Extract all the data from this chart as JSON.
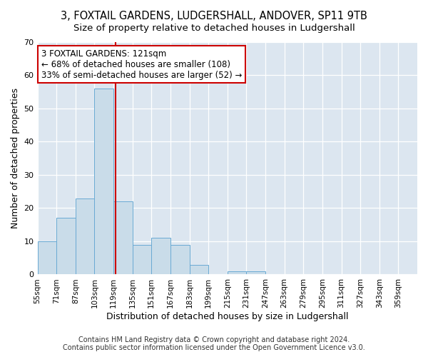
{
  "title": "3, FOXTAIL GARDENS, LUDGERSHALL, ANDOVER, SP11 9TB",
  "subtitle": "Size of property relative to detached houses in Ludgershall",
  "xlabel": "Distribution of detached houses by size in Ludgershall",
  "ylabel": "Number of detached properties",
  "bin_edges": [
    55,
    71,
    87,
    103,
    119,
    135,
    151,
    167,
    183,
    199,
    215,
    231,
    247,
    263,
    279,
    295,
    311,
    327,
    343,
    359,
    375
  ],
  "bar_heights": [
    10,
    17,
    23,
    56,
    22,
    9,
    11,
    9,
    3,
    0,
    1,
    1,
    0,
    0,
    0,
    0,
    0,
    0,
    0,
    0
  ],
  "bar_color": "#c9dce9",
  "bar_edgecolor": "#6aaad4",
  "property_size": 121,
  "vline_color": "#cc0000",
  "annotation_line1": "3 FOXTAIL GARDENS: 121sqm",
  "annotation_line2": "← 68% of detached houses are smaller (108)",
  "annotation_line3": "33% of semi-detached houses are larger (52) →",
  "annotation_box_edgecolor": "#cc0000",
  "annotation_box_facecolor": "#ffffff",
  "ylim": [
    0,
    70
  ],
  "yticks": [
    0,
    10,
    20,
    30,
    40,
    50,
    60,
    70
  ],
  "background_color": "#dce6f0",
  "footer_line1": "Contains HM Land Registry data © Crown copyright and database right 2024.",
  "footer_line2": "Contains public sector information licensed under the Open Government Licence v3.0.",
  "title_fontsize": 10.5,
  "subtitle_fontsize": 9.5,
  "tick_label_fontsize": 7.5,
  "axis_label_fontsize": 9,
  "annotation_fontsize": 8.5
}
